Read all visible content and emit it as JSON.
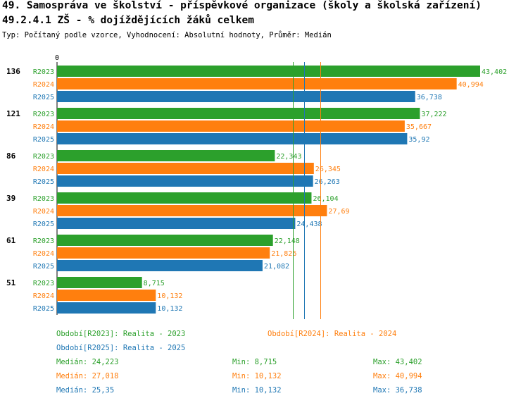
{
  "header": {
    "title": "49. Samospráva ve školství - příspěvkové organizace (školy a školská zařízení)",
    "subtitle": "49.2.4.1 ZŠ - % dojíždějících žáků celkem",
    "type_line": "Typ: Počítaný podle vzorce, Vyhodnocení: Absolutní hodnoty, Průměr: Medián"
  },
  "chart_data": {
    "type": "bar",
    "orientation": "horizontal",
    "axis_zero_label": "0",
    "xlim": [
      0,
      43.402
    ],
    "categories": [
      "136",
      "121",
      "86",
      "39",
      "61",
      "51"
    ],
    "series": [
      {
        "name": "R2023",
        "color": "#2ca02c",
        "values": [
          43.402,
          37.222,
          22.343,
          26.104,
          22.148,
          8.715
        ],
        "labels": [
          "43,402",
          "37,222",
          "22,343",
          "26,104",
          "22,148",
          "8,715"
        ],
        "median": 24.223
      },
      {
        "name": "R2024",
        "color": "#ff7f0e",
        "values": [
          40.994,
          35.667,
          26.345,
          27.69,
          21.826,
          10.132
        ],
        "labels": [
          "40,994",
          "35,667",
          "26,345",
          "27,69",
          "21,826",
          "10,132"
        ],
        "median": 27.018
      },
      {
        "name": "R2025",
        "color": "#1f77b4",
        "values": [
          36.738,
          35.92,
          26.263,
          24.438,
          21.082,
          10.132
        ],
        "labels": [
          "36,738",
          "35,92",
          "26,263",
          "24,438",
          "21,082",
          "10,132"
        ],
        "median": 25.35
      }
    ]
  },
  "legend": {
    "r2023": "Období[R2023]: Realita - 2023",
    "r2024": "Období[R2024]: Realita - 2024",
    "r2025": "Období[R2025]: Realita - 2025"
  },
  "stats": {
    "r2023": {
      "median": "Medián: 24,223",
      "min": "Min: 8,715",
      "max": "Max: 43,402"
    },
    "r2024": {
      "median": "Medián: 27,018",
      "min": "Min: 10,132",
      "max": "Max: 40,994"
    },
    "r2025": {
      "median": "Medián: 25,35",
      "min": "Min: 10,132",
      "max": "Max: 36,738"
    }
  },
  "colors": {
    "r2023": "#2ca02c",
    "r2024": "#ff7f0e",
    "r2025": "#1f77b4"
  }
}
